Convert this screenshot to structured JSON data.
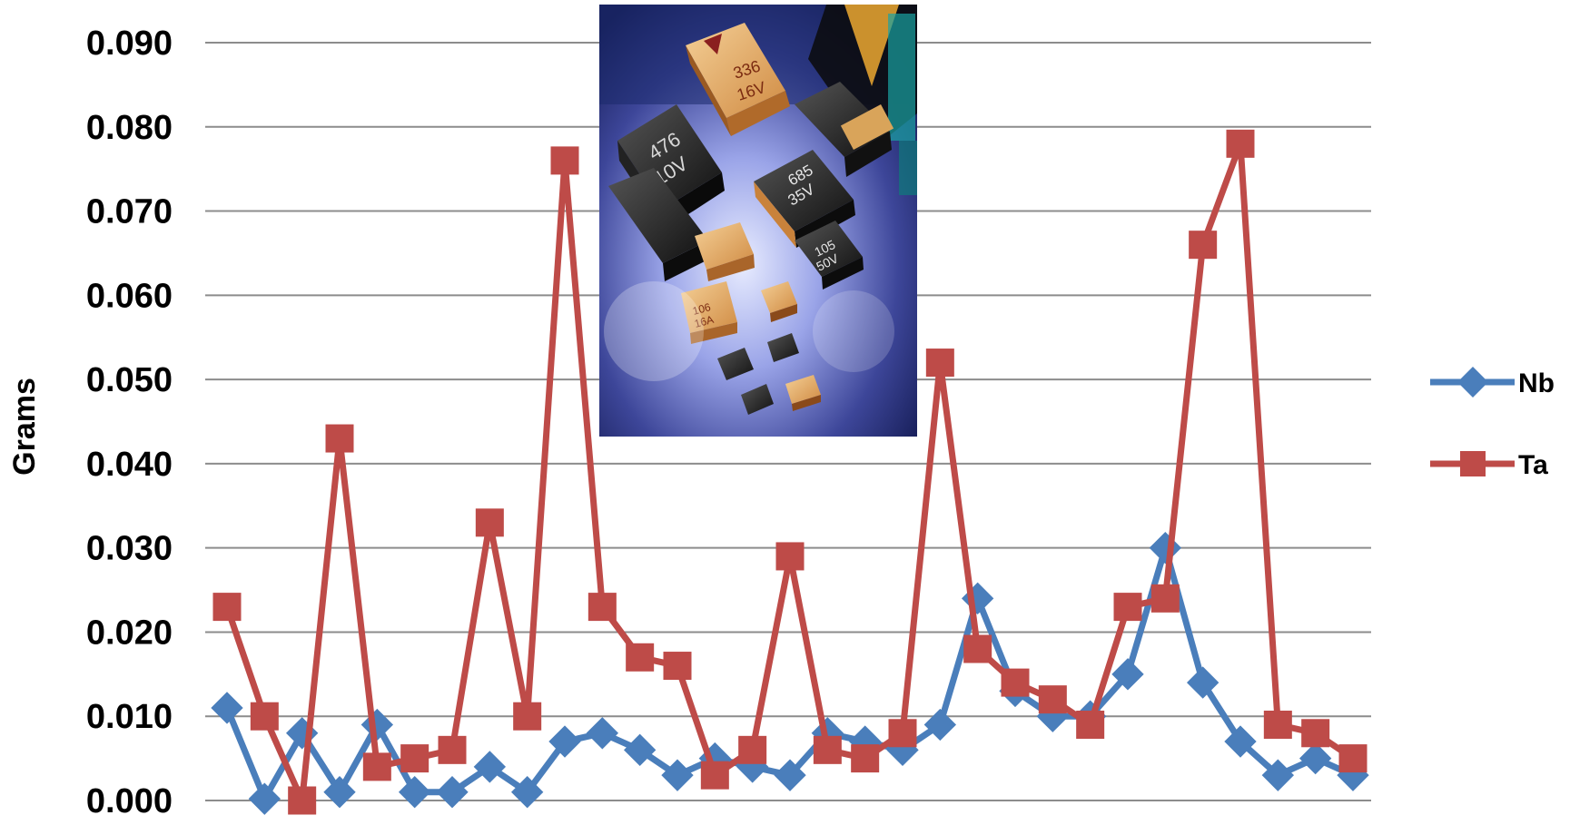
{
  "chart_data": {
    "type": "line",
    "title": "",
    "xlabel": "",
    "ylabel": "Grams",
    "ylim": [
      0,
      0.09
    ],
    "yticks": [
      "0.000",
      "0.010",
      "0.020",
      "0.030",
      "0.040",
      "0.050",
      "0.060",
      "0.070",
      "0.080",
      "0.090"
    ],
    "grid": "horizontal",
    "legend_position": "right",
    "series": [
      {
        "name": "Nb",
        "color": "#4a7ebb",
        "marker": "diamond",
        "values": [
          0.011,
          0.0002,
          0.008,
          0.001,
          0.009,
          0.001,
          0.001,
          0.004,
          0.001,
          0.007,
          0.008,
          0.006,
          0.003,
          0.005,
          0.004,
          0.003,
          0.008,
          0.007,
          0.006,
          0.009,
          0.024,
          0.013,
          0.01,
          0.01,
          0.015,
          0.03,
          0.014,
          0.007,
          0.003,
          0.005,
          0.003
        ]
      },
      {
        "name": "Ta",
        "color": "#be4b48",
        "marker": "square",
        "values": [
          0.023,
          0.01,
          0.0,
          0.043,
          0.004,
          0.005,
          0.006,
          0.033,
          0.01,
          0.076,
          0.023,
          0.017,
          0.016,
          0.003,
          0.006,
          0.029,
          0.006,
          0.005,
          0.008,
          0.052,
          0.018,
          0.014,
          0.012,
          0.009,
          0.023,
          0.024,
          0.066,
          0.078,
          0.009,
          0.008,
          0.005
        ]
      }
    ]
  },
  "photo": {
    "description_icon": "tantalum-capacitors-photo",
    "capacitor_labels": [
      {
        "line1": "336",
        "line2": "16V"
      },
      {
        "line1": "476",
        "line2": "10V"
      },
      {
        "line1": "685",
        "line2": "35V"
      },
      {
        "line1": "105",
        "line2": "50V"
      },
      {
        "line1": "106",
        "line2": "16A"
      }
    ]
  }
}
